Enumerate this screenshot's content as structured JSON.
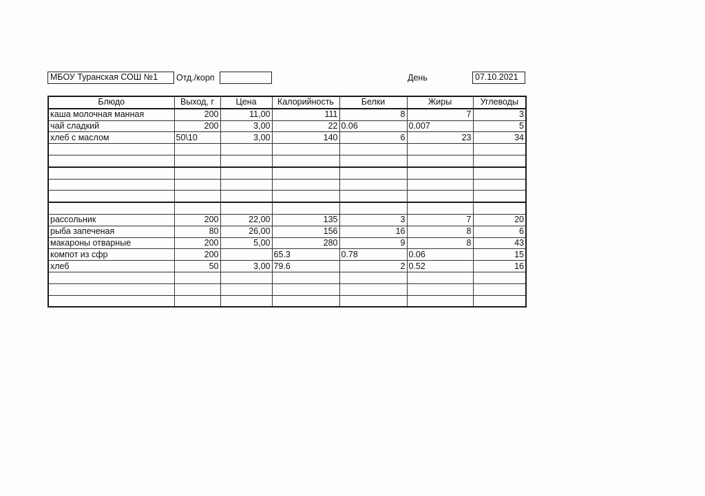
{
  "header": {
    "school": "МБОУ Туранская СОШ №1",
    "dept_label": "Отд./корп",
    "dept_value": "",
    "day_label": "День",
    "date": "07.10.2021"
  },
  "table": {
    "columns": [
      "Блюдо",
      "Выход, г",
      "Цена",
      "Калорийность",
      "Белки",
      "Жиры",
      "Углеводы"
    ],
    "rows": [
      [
        "каша молочная манная",
        "200",
        "11,00",
        "111",
        "8",
        "7",
        "3"
      ],
      [
        "чай сладкий",
        "200",
        "3,00",
        "22",
        "0.06",
        "0.007",
        "5"
      ],
      [
        "хлеб с маслом",
        "50\\10",
        "3,00",
        "140",
        "6",
        "23",
        "34"
      ],
      [
        "",
        "",
        "",
        "",
        "",
        "",
        ""
      ],
      [
        "",
        "",
        "",
        "",
        "",
        "",
        ""
      ],
      [
        "",
        "",
        "",
        "",
        "",
        "",
        ""
      ],
      [
        "",
        "",
        "",
        "",
        "",
        "",
        ""
      ],
      [
        "",
        "",
        "",
        "",
        "",
        "",
        ""
      ],
      [
        "",
        "",
        "",
        "",
        "",
        "",
        ""
      ],
      [
        "рассольник",
        "200",
        "22,00",
        "135",
        "3",
        "7",
        "20"
      ],
      [
        "рыба запеченая",
        "80",
        "26,00",
        "156",
        "16",
        "8",
        "6"
      ],
      [
        "макароны отварные",
        "200",
        "5,00",
        "280",
        "9",
        "8",
        "43"
      ],
      [
        "компот из сфр",
        "200",
        "",
        "65.3",
        "0.78",
        "0.06",
        "15"
      ],
      [
        "хлеб",
        "50",
        "3,00",
        "79.6",
        "2",
        "0.52",
        "16"
      ],
      [
        "",
        "",
        "",
        "",
        "",
        "",
        ""
      ],
      [
        "",
        "",
        "",
        "",
        "",
        "",
        ""
      ],
      [
        "",
        "",
        "",
        "",
        "",
        "",
        ""
      ]
    ]
  }
}
